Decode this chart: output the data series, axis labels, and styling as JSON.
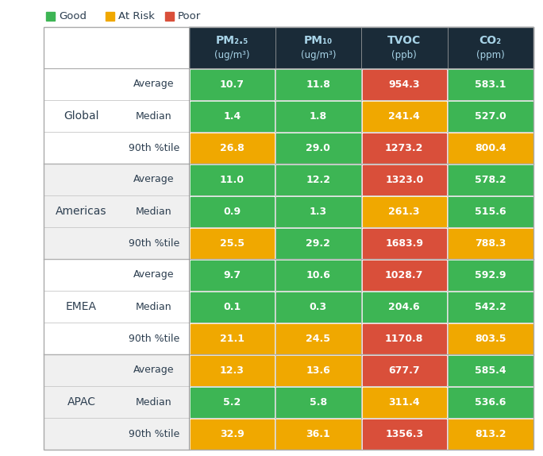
{
  "legend": [
    {
      "label": "Good",
      "color": "#3db554"
    },
    {
      "label": "At Risk",
      "color": "#f0a800"
    },
    {
      "label": "Poor",
      "color": "#d94f3a"
    }
  ],
  "col_headers_line1": [
    "PM₂.₅",
    "PM₁₀",
    "TVOC",
    "CO₂"
  ],
  "col_headers_line2": [
    "(ug/m³)",
    "(ug/m³)",
    "(ppb)",
    "(ppm)"
  ],
  "row_groups": [
    "Global",
    "Americas",
    "EMEA",
    "APAC"
  ],
  "row_labels": [
    "Average",
    "Median",
    "90th %tile"
  ],
  "data": [
    [
      [
        "10.7",
        "11.8",
        "954.3",
        "583.1"
      ],
      [
        "1.4",
        "1.8",
        "241.4",
        "527.0"
      ],
      [
        "26.8",
        "29.0",
        "1273.2",
        "800.4"
      ]
    ],
    [
      [
        "11.0",
        "12.2",
        "1323.0",
        "578.2"
      ],
      [
        "0.9",
        "1.3",
        "261.3",
        "515.6"
      ],
      [
        "25.5",
        "29.2",
        "1683.9",
        "788.3"
      ]
    ],
    [
      [
        "9.7",
        "10.6",
        "1028.7",
        "592.9"
      ],
      [
        "0.1",
        "0.3",
        "204.6",
        "542.2"
      ],
      [
        "21.1",
        "24.5",
        "1170.8",
        "803.5"
      ]
    ],
    [
      [
        "12.3",
        "13.6",
        "677.7",
        "585.4"
      ],
      [
        "5.2",
        "5.8",
        "311.4",
        "536.6"
      ],
      [
        "32.9",
        "36.1",
        "1356.3",
        "813.2"
      ]
    ]
  ],
  "colors": [
    [
      [
        "#3db554",
        "#3db554",
        "#d94f3a",
        "#3db554"
      ],
      [
        "#3db554",
        "#3db554",
        "#f0a800",
        "#3db554"
      ],
      [
        "#f0a800",
        "#3db554",
        "#d94f3a",
        "#f0a800"
      ]
    ],
    [
      [
        "#3db554",
        "#3db554",
        "#d94f3a",
        "#3db554"
      ],
      [
        "#3db554",
        "#3db554",
        "#f0a800",
        "#3db554"
      ],
      [
        "#f0a800",
        "#3db554",
        "#d94f3a",
        "#f0a800"
      ]
    ],
    [
      [
        "#3db554",
        "#3db554",
        "#d94f3a",
        "#3db554"
      ],
      [
        "#3db554",
        "#3db554",
        "#3db554",
        "#3db554"
      ],
      [
        "#f0a800",
        "#f0a800",
        "#d94f3a",
        "#f0a800"
      ]
    ],
    [
      [
        "#f0a800",
        "#f0a800",
        "#d94f3a",
        "#3db554"
      ],
      [
        "#3db554",
        "#3db554",
        "#f0a800",
        "#3db554"
      ],
      [
        "#f0a800",
        "#f0a800",
        "#d94f3a",
        "#f0a800"
      ]
    ]
  ],
  "header_bg": "#1a2b38",
  "header_text": "#a8d4e8",
  "cell_text_color": "#ffffff",
  "bg_outer": "#ffffff",
  "bg_light": "#f0f0f0",
  "bg_white": "#ffffff",
  "group_text_color": "#2c3e50",
  "row_label_color": "#2c3e50",
  "separator_color": "#c8c8c8",
  "group_sep_color": "#b0b0b0"
}
